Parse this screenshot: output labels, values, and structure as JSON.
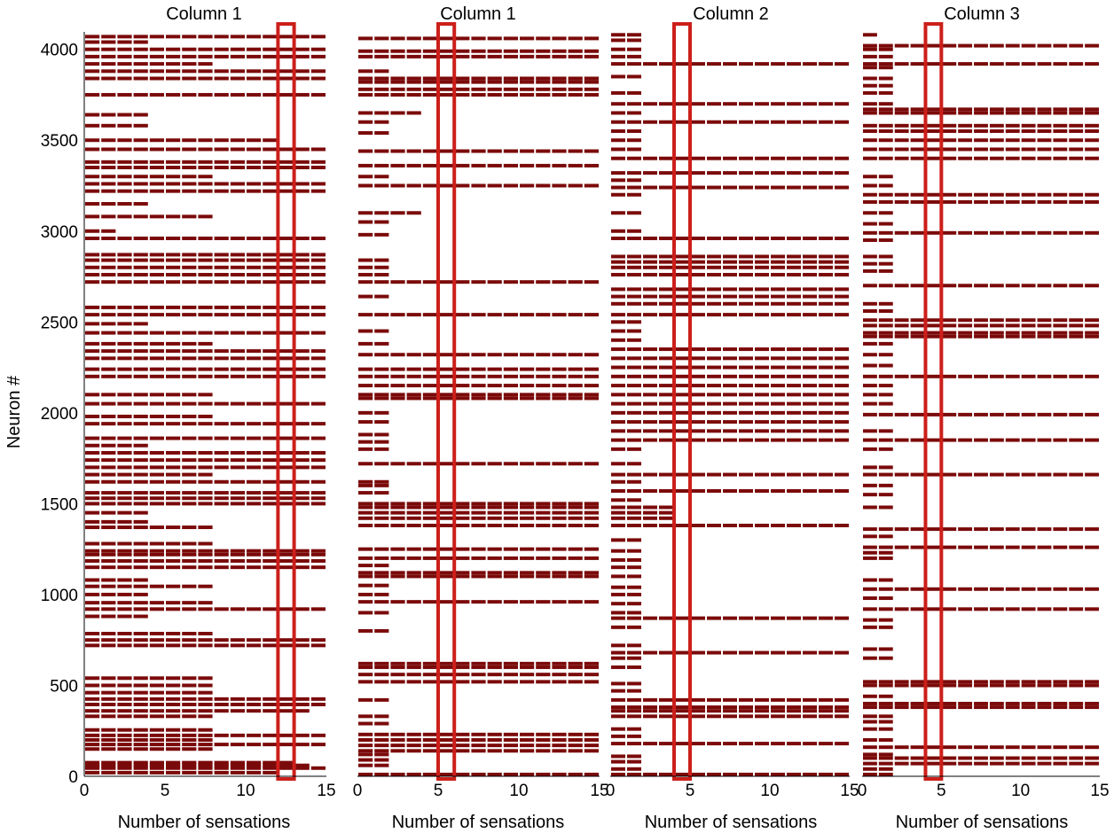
{
  "chart_data": {
    "type": "heatmap",
    "ylabel": "Neuron #",
    "xlabel": "Number of sensations",
    "xlim": [
      0,
      15
    ],
    "ylim": [
      0,
      4096
    ],
    "x_ticks": [
      "0",
      "5",
      "10",
      "15"
    ],
    "y_ticks": [
      "0",
      "500",
      "1000",
      "1500",
      "2000",
      "2500",
      "3000",
      "3500",
      "4000"
    ],
    "cell_color": "#7b0a0a",
    "highlight_color": "#cc1f1a",
    "panels": [
      {
        "title": "Column 1",
        "highlight_sensation": 13,
        "neurons": [
          [
            20,
            12
          ],
          [
            45,
            15
          ],
          [
            60,
            14
          ],
          [
            75,
            13
          ],
          [
            150,
            8
          ],
          [
            175,
            15
          ],
          [
            200,
            8
          ],
          [
            225,
            15
          ],
          [
            255,
            8
          ],
          [
            330,
            8
          ],
          [
            360,
            14
          ],
          [
            395,
            15
          ],
          [
            425,
            15
          ],
          [
            460,
            8
          ],
          [
            500,
            8
          ],
          [
            540,
            8
          ],
          [
            720,
            15
          ],
          [
            750,
            15
          ],
          [
            785,
            8
          ],
          [
            880,
            4
          ],
          [
            920,
            15
          ],
          [
            955,
            8
          ],
          [
            1000,
            4
          ],
          [
            1045,
            8
          ],
          [
            1080,
            4
          ],
          [
            1150,
            15
          ],
          [
            1185,
            15
          ],
          [
            1220,
            15
          ],
          [
            1240,
            15
          ],
          [
            1280,
            8
          ],
          [
            1370,
            8
          ],
          [
            1400,
            4
          ],
          [
            1450,
            4
          ],
          [
            1500,
            15
          ],
          [
            1530,
            15
          ],
          [
            1560,
            15
          ],
          [
            1620,
            15
          ],
          [
            1660,
            8
          ],
          [
            1700,
            15
          ],
          [
            1740,
            15
          ],
          [
            1780,
            15
          ],
          [
            1820,
            4
          ],
          [
            1860,
            15
          ],
          [
            1940,
            15
          ],
          [
            1980,
            8
          ],
          [
            2050,
            15
          ],
          [
            2100,
            8
          ],
          [
            2200,
            15
          ],
          [
            2240,
            15
          ],
          [
            2300,
            15
          ],
          [
            2340,
            15
          ],
          [
            2380,
            8
          ],
          [
            2440,
            15
          ],
          [
            2490,
            4
          ],
          [
            2540,
            15
          ],
          [
            2580,
            15
          ],
          [
            2720,
            15
          ],
          [
            2760,
            15
          ],
          [
            2800,
            15
          ],
          [
            2840,
            15
          ],
          [
            2870,
            15
          ],
          [
            2960,
            15
          ],
          [
            3000,
            2
          ],
          [
            3080,
            8
          ],
          [
            3150,
            4
          ],
          [
            3220,
            15
          ],
          [
            3260,
            15
          ],
          [
            3300,
            8
          ],
          [
            3350,
            15
          ],
          [
            3380,
            15
          ],
          [
            3450,
            15
          ],
          [
            3500,
            12
          ],
          [
            3580,
            4
          ],
          [
            3640,
            4
          ],
          [
            3750,
            15
          ],
          [
            3840,
            15
          ],
          [
            3880,
            15
          ],
          [
            3920,
            8
          ],
          [
            3960,
            15
          ],
          [
            4000,
            15
          ],
          [
            4040,
            4
          ],
          [
            4070,
            15
          ]
        ]
      },
      {
        "title": "Column 1",
        "highlight_sensation": 6,
        "neurons": [
          [
            10,
            15
          ],
          [
            60,
            2
          ],
          [
            90,
            2
          ],
          [
            120,
            2
          ],
          [
            140,
            15
          ],
          [
            170,
            15
          ],
          [
            200,
            15
          ],
          [
            230,
            15
          ],
          [
            290,
            2
          ],
          [
            330,
            2
          ],
          [
            420,
            2
          ],
          [
            520,
            15
          ],
          [
            560,
            15
          ],
          [
            600,
            15
          ],
          [
            620,
            15
          ],
          [
            800,
            2
          ],
          [
            900,
            2
          ],
          [
            960,
            15
          ],
          [
            1000,
            2
          ],
          [
            1050,
            2
          ],
          [
            1100,
            15
          ],
          [
            1120,
            15
          ],
          [
            1160,
            2
          ],
          [
            1200,
            15
          ],
          [
            1250,
            15
          ],
          [
            1380,
            15
          ],
          [
            1420,
            15
          ],
          [
            1450,
            15
          ],
          [
            1480,
            15
          ],
          [
            1500,
            15
          ],
          [
            1560,
            2
          ],
          [
            1600,
            2
          ],
          [
            1620,
            2
          ],
          [
            1720,
            15
          ],
          [
            1800,
            2
          ],
          [
            1840,
            2
          ],
          [
            1880,
            2
          ],
          [
            1950,
            2
          ],
          [
            2000,
            2
          ],
          [
            2080,
            15
          ],
          [
            2100,
            15
          ],
          [
            2150,
            15
          ],
          [
            2200,
            15
          ],
          [
            2240,
            15
          ],
          [
            2320,
            15
          ],
          [
            2380,
            2
          ],
          [
            2450,
            2
          ],
          [
            2540,
            15
          ],
          [
            2640,
            2
          ],
          [
            2720,
            15
          ],
          [
            2760,
            2
          ],
          [
            2800,
            2
          ],
          [
            2840,
            2
          ],
          [
            2980,
            2
          ],
          [
            3050,
            2
          ],
          [
            3100,
            4
          ],
          [
            3250,
            15
          ],
          [
            3300,
            2
          ],
          [
            3360,
            15
          ],
          [
            3440,
            15
          ],
          [
            3540,
            2
          ],
          [
            3600,
            2
          ],
          [
            3650,
            4
          ],
          [
            3750,
            15
          ],
          [
            3780,
            15
          ],
          [
            3820,
            15
          ],
          [
            3840,
            15
          ],
          [
            3880,
            2
          ],
          [
            3960,
            15
          ],
          [
            3990,
            15
          ],
          [
            4060,
            15
          ]
        ]
      },
      {
        "title": "Column 2",
        "highlight_sensation": 5,
        "neurons": [
          [
            10,
            15
          ],
          [
            40,
            2
          ],
          [
            80,
            2
          ],
          [
            110,
            2
          ],
          [
            180,
            15
          ],
          [
            220,
            2
          ],
          [
            260,
            2
          ],
          [
            330,
            15
          ],
          [
            360,
            15
          ],
          [
            380,
            15
          ],
          [
            420,
            15
          ],
          [
            470,
            2
          ],
          [
            510,
            2
          ],
          [
            600,
            2
          ],
          [
            650,
            2
          ],
          [
            680,
            15
          ],
          [
            720,
            2
          ],
          [
            820,
            2
          ],
          [
            870,
            15
          ],
          [
            900,
            2
          ],
          [
            950,
            2
          ],
          [
            1000,
            2
          ],
          [
            1040,
            2
          ],
          [
            1100,
            2
          ],
          [
            1150,
            2
          ],
          [
            1190,
            2
          ],
          [
            1240,
            2
          ],
          [
            1300,
            2
          ],
          [
            1380,
            15
          ],
          [
            1420,
            4
          ],
          [
            1450,
            4
          ],
          [
            1480,
            4
          ],
          [
            1520,
            2
          ],
          [
            1570,
            15
          ],
          [
            1620,
            2
          ],
          [
            1660,
            15
          ],
          [
            1720,
            2
          ],
          [
            1800,
            2
          ],
          [
            1850,
            15
          ],
          [
            1900,
            15
          ],
          [
            1950,
            15
          ],
          [
            2000,
            15
          ],
          [
            2050,
            15
          ],
          [
            2100,
            15
          ],
          [
            2150,
            15
          ],
          [
            2200,
            15
          ],
          [
            2250,
            15
          ],
          [
            2300,
            15
          ],
          [
            2350,
            15
          ],
          [
            2400,
            2
          ],
          [
            2450,
            2
          ],
          [
            2500,
            2
          ],
          [
            2540,
            15
          ],
          [
            2600,
            15
          ],
          [
            2640,
            15
          ],
          [
            2680,
            15
          ],
          [
            2760,
            15
          ],
          [
            2800,
            15
          ],
          [
            2830,
            15
          ],
          [
            2860,
            15
          ],
          [
            2960,
            15
          ],
          [
            3000,
            2
          ],
          [
            3100,
            2
          ],
          [
            3200,
            2
          ],
          [
            3240,
            15
          ],
          [
            3280,
            2
          ],
          [
            3320,
            15
          ],
          [
            3400,
            15
          ],
          [
            3450,
            2
          ],
          [
            3500,
            2
          ],
          [
            3550,
            2
          ],
          [
            3600,
            15
          ],
          [
            3650,
            2
          ],
          [
            3700,
            15
          ],
          [
            3760,
            2
          ],
          [
            3850,
            2
          ],
          [
            3920,
            15
          ],
          [
            3960,
            2
          ],
          [
            4000,
            2
          ],
          [
            4050,
            2
          ],
          [
            4080,
            2
          ]
        ]
      },
      {
        "title": "Column 3",
        "highlight_sensation": 5,
        "neurons": [
          [
            10,
            2
          ],
          [
            40,
            2
          ],
          [
            70,
            15
          ],
          [
            100,
            15
          ],
          [
            120,
            2
          ],
          [
            160,
            15
          ],
          [
            200,
            2
          ],
          [
            260,
            2
          ],
          [
            300,
            2
          ],
          [
            330,
            2
          ],
          [
            380,
            15
          ],
          [
            400,
            15
          ],
          [
            440,
            2
          ],
          [
            500,
            15
          ],
          [
            520,
            15
          ],
          [
            650,
            2
          ],
          [
            700,
            2
          ],
          [
            820,
            2
          ],
          [
            860,
            2
          ],
          [
            920,
            15
          ],
          [
            980,
            2
          ],
          [
            1030,
            15
          ],
          [
            1080,
            2
          ],
          [
            1200,
            2
          ],
          [
            1230,
            2
          ],
          [
            1260,
            15
          ],
          [
            1320,
            2
          ],
          [
            1360,
            15
          ],
          [
            1480,
            2
          ],
          [
            1550,
            2
          ],
          [
            1600,
            2
          ],
          [
            1660,
            15
          ],
          [
            1700,
            2
          ],
          [
            1800,
            2
          ],
          [
            1850,
            15
          ],
          [
            1900,
            2
          ],
          [
            1990,
            15
          ],
          [
            2050,
            2
          ],
          [
            2100,
            2
          ],
          [
            2150,
            2
          ],
          [
            2200,
            15
          ],
          [
            2260,
            2
          ],
          [
            2320,
            2
          ],
          [
            2380,
            2
          ],
          [
            2420,
            15
          ],
          [
            2440,
            15
          ],
          [
            2480,
            15
          ],
          [
            2510,
            15
          ],
          [
            2560,
            2
          ],
          [
            2600,
            2
          ],
          [
            2700,
            15
          ],
          [
            2780,
            2
          ],
          [
            2820,
            2
          ],
          [
            2860,
            2
          ],
          [
            2950,
            2
          ],
          [
            2990,
            15
          ],
          [
            3040,
            2
          ],
          [
            3100,
            2
          ],
          [
            3160,
            15
          ],
          [
            3200,
            15
          ],
          [
            3250,
            2
          ],
          [
            3300,
            2
          ],
          [
            3400,
            15
          ],
          [
            3450,
            15
          ],
          [
            3500,
            15
          ],
          [
            3550,
            15
          ],
          [
            3580,
            15
          ],
          [
            3650,
            15
          ],
          [
            3670,
            15
          ],
          [
            3700,
            2
          ],
          [
            3760,
            2
          ],
          [
            3800,
            2
          ],
          [
            3840,
            2
          ],
          [
            3900,
            2
          ],
          [
            3920,
            15
          ],
          [
            3960,
            2
          ],
          [
            4000,
            2
          ],
          [
            4020,
            15
          ],
          [
            4080,
            1
          ]
        ]
      }
    ]
  }
}
